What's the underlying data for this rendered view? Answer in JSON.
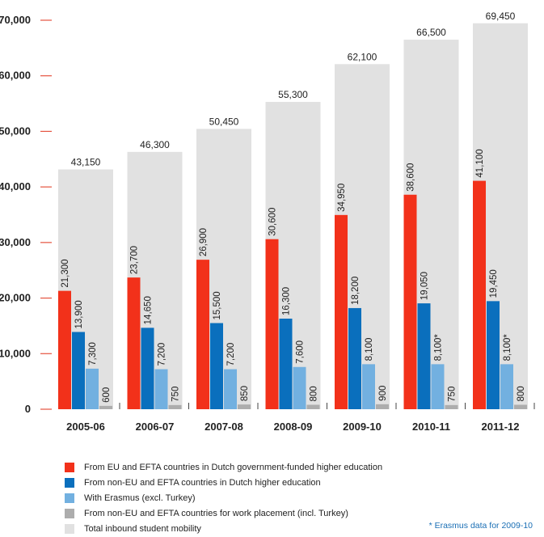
{
  "chart_data": {
    "type": "bar",
    "title": "",
    "xlabel": "",
    "ylabel": "",
    "ylim": [
      0,
      70000
    ],
    "yticks": [
      0,
      10000,
      20000,
      30000,
      40000,
      50000,
      60000,
      70000
    ],
    "ytick_labels": [
      "0",
      "10,000",
      "20,000",
      "30,000",
      "40,000",
      "50,000",
      "60,000",
      "70,000"
    ],
    "categories": [
      "2005-06",
      "2006-07",
      "2007-08",
      "2008-09",
      "2009-10",
      "2010-11",
      "2011-12"
    ],
    "total_series": {
      "name": "Total inbound student mobility",
      "color": "#e1e1e1",
      "values": [
        43150,
        46300,
        50450,
        55300,
        62100,
        66500,
        69450
      ],
      "labels": [
        "43,150",
        "46,300",
        "50,450",
        "55,300",
        "62,100",
        "66,500",
        "69,450"
      ]
    },
    "series": [
      {
        "name": "From EU and EFTA countries in Dutch government-funded higher education",
        "color": "#f2311a",
        "values": [
          21300,
          23700,
          26900,
          30600,
          34950,
          38600,
          41100
        ],
        "labels": [
          "21,300",
          "23,700",
          "26,900",
          "30,600",
          "34,950",
          "38,600",
          "41,100"
        ]
      },
      {
        "name": "From non-EU and EFTA countries in Dutch higher education",
        "color": "#0a6fbd",
        "values": [
          13900,
          14650,
          15500,
          16300,
          18200,
          19050,
          19450
        ],
        "labels": [
          "13,900",
          "14,650",
          "15,500",
          "16,300",
          "18,200",
          "19,050",
          "19,450"
        ]
      },
      {
        "name": "With Erasmus (excl. Turkey)",
        "color": "#72b0e0",
        "values": [
          7300,
          7200,
          7200,
          7600,
          8100,
          8100,
          8100
        ],
        "labels": [
          "7,300",
          "7,200",
          "7,200",
          "7,600",
          "8,100",
          "8,100*",
          "8,100*"
        ]
      },
      {
        "name": "From non-EU and EFTA countries for work placement (incl. Turkey)",
        "color": "#adadad",
        "values": [
          600,
          750,
          850,
          800,
          900,
          750,
          800
        ],
        "labels": [
          "600",
          "750",
          "850",
          "800",
          "900",
          "750",
          "800"
        ]
      }
    ],
    "legend": {
      "placement": "bottom-left",
      "entries": [
        {
          "label": "From EU and EFTA countries in Dutch government-funded higher education",
          "color": "#f2311a"
        },
        {
          "label": "From non-EU and EFTA countries in Dutch higher education",
          "color": "#0a6fbd"
        },
        {
          "label": "With Erasmus (excl. Turkey)",
          "color": "#72b0e0"
        },
        {
          "label": "From non-EU and EFTA countries for work placement (incl. Turkey)",
          "color": "#adadad"
        },
        {
          "label": "Total inbound student mobility",
          "color": "#e1e1e1"
        }
      ]
    },
    "axis_tick_color": "#e5533f",
    "footnote": "* Erasmus data for 2009-10",
    "footnote_color": "#1a6fb5",
    "grid": false
  }
}
